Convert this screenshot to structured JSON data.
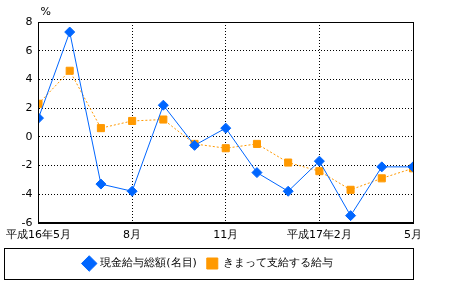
{
  "chart_data": {
    "type": "line",
    "ylabel": "%",
    "categories": [
      "平成16年5月",
      null,
      null,
      "8月",
      null,
      null,
      "11月",
      null,
      null,
      "平成17年2月",
      null,
      null,
      "5月"
    ],
    "series": [
      {
        "name": "現金給与総額(名目)",
        "color": "#0066ff",
        "marker": "diamond",
        "line_style": "solid",
        "values": [
          1.3,
          7.3,
          -3.3,
          -3.8,
          2.2,
          -0.6,
          0.6,
          -2.5,
          -3.8,
          -1.7,
          -5.5,
          -2.1,
          -2.1
        ]
      },
      {
        "name": "きまって支給する給与",
        "color": "#ff9900",
        "marker": "square",
        "line_style": "dotted",
        "values": [
          2.3,
          4.6,
          0.6,
          1.1,
          1.2,
          -0.5,
          -0.8,
          -0.5,
          -1.8,
          -2.4,
          -3.7,
          -2.9,
          -2.2
        ]
      }
    ],
    "ylim": [
      -6,
      8
    ],
    "yticks": [
      -6,
      -4,
      -2,
      0,
      2,
      4,
      6,
      8
    ],
    "grid": true,
    "legend": "bottom"
  }
}
